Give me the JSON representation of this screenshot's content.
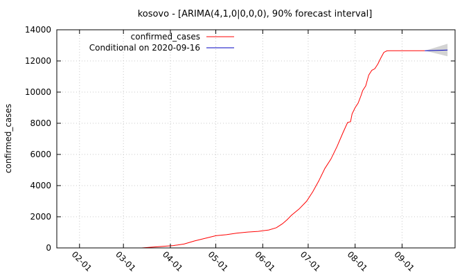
{
  "chart_data": {
    "type": "line",
    "title": "kosovo -  [ARIMA(4,1,0|0,0,0), 90% forecast interval]",
    "xlabel": "",
    "ylabel": "confirmed_cases",
    "ylim": [
      0,
      14000
    ],
    "xlim": [
      "2020-01-17",
      "2020-10-06"
    ],
    "grid": true,
    "legend_position": "top-left",
    "y_ticks": [
      0,
      2000,
      4000,
      6000,
      8000,
      10000,
      12000,
      14000
    ],
    "y_tick_labels": [
      "0",
      "2000",
      "4000",
      "6000",
      "8000",
      "10000",
      "12000",
      "14000"
    ],
    "x_ticks": [
      "2020-02-01",
      "2020-03-01",
      "2020-04-01",
      "2020-05-01",
      "2020-06-01",
      "2020-07-01",
      "2020-08-01",
      "2020-09-01"
    ],
    "x_tick_labels": [
      "02-01",
      "03-01",
      "04-01",
      "05-01",
      "06-01",
      "07-01",
      "08-01",
      "09-01"
    ],
    "series": [
      {
        "name": "confirmed_cases",
        "color": "#ff0000",
        "x": [
          "2020-03-13",
          "2020-03-20",
          "2020-03-27",
          "2020-04-03",
          "2020-04-10",
          "2020-04-17",
          "2020-04-24",
          "2020-05-01",
          "2020-05-08",
          "2020-05-15",
          "2020-05-22",
          "2020-05-29",
          "2020-06-05",
          "2020-06-10",
          "2020-06-14",
          "2020-06-17",
          "2020-06-20",
          "2020-06-25",
          "2020-06-30",
          "2020-07-04",
          "2020-07-08",
          "2020-07-12",
          "2020-07-16",
          "2020-07-20",
          "2020-07-24",
          "2020-07-27",
          "2020-07-29",
          "2020-07-30",
          "2020-08-01",
          "2020-08-03",
          "2020-08-05",
          "2020-08-06",
          "2020-08-08",
          "2020-08-10",
          "2020-08-12",
          "2020-08-14",
          "2020-08-16",
          "2020-08-18",
          "2020-08-20",
          "2020-08-22",
          "2020-08-24",
          "2020-09-16"
        ],
        "values": [
          0,
          50,
          100,
          150,
          250,
          450,
          620,
          780,
          850,
          950,
          1020,
          1060,
          1150,
          1300,
          1550,
          1800,
          2100,
          2500,
          3000,
          3600,
          4300,
          5100,
          5700,
          6500,
          7400,
          8050,
          8100,
          8600,
          9000,
          9300,
          9800,
          10100,
          10400,
          11100,
          11400,
          11500,
          11800,
          12200,
          12550,
          12650,
          12660,
          12660
        ]
      },
      {
        "name": "Conditional on 2020-09-16",
        "color": "#0000c0",
        "x": [
          "2020-09-16",
          "2020-10-01"
        ],
        "values": [
          12660,
          12700
        ],
        "interval_upper": [
          12660,
          13100
        ],
        "interval_lower": [
          12660,
          12300
        ],
        "interval_color": "#d3d3d3"
      }
    ]
  }
}
